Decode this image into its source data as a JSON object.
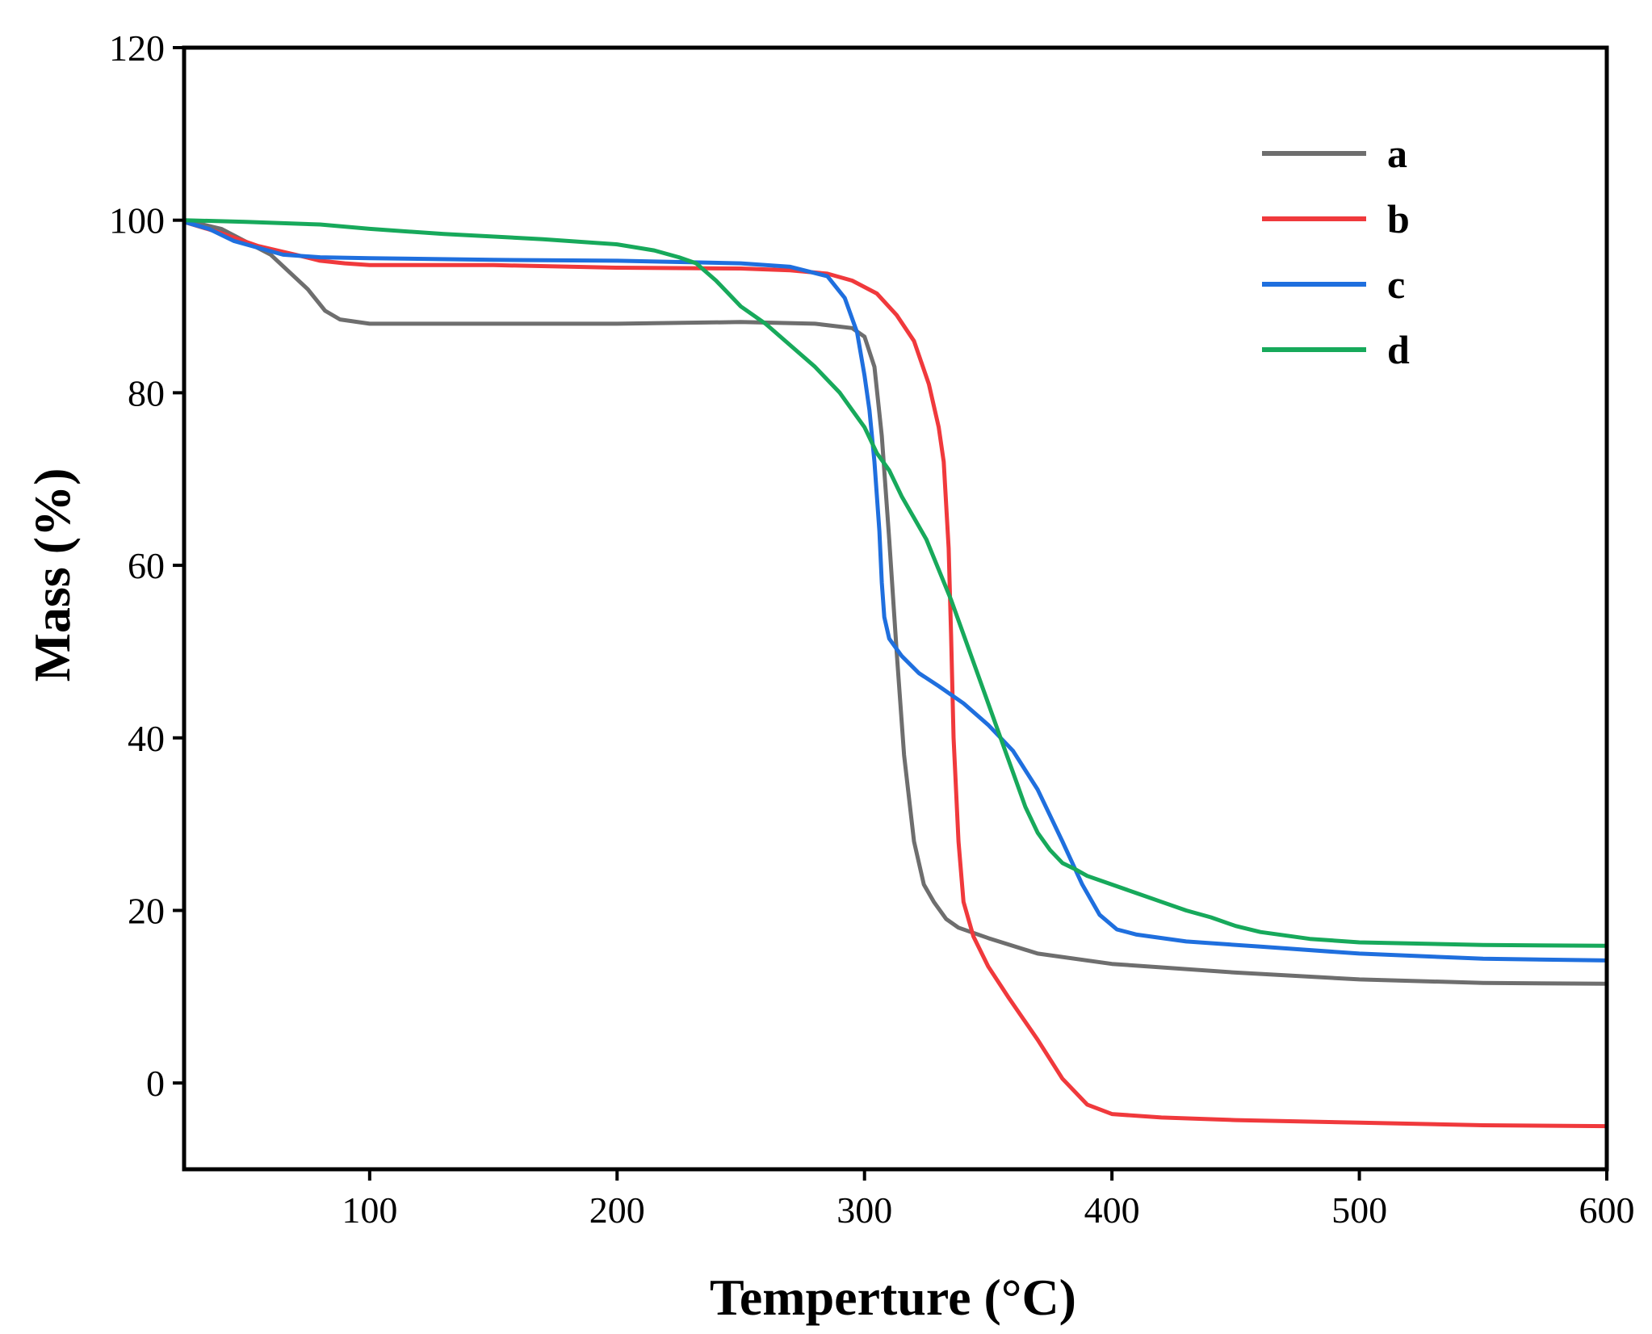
{
  "chart_data": {
    "type": "line",
    "xlabel": "Temperture (°C)",
    "ylabel": "Mass (%)",
    "xlim": [
      25,
      600
    ],
    "ylim": [
      -10,
      120
    ],
    "xticks": [
      100,
      200,
      300,
      400,
      500,
      600
    ],
    "yticks": [
      0,
      20,
      40,
      60,
      80,
      100,
      120
    ],
    "legend_position": "top-right",
    "series": [
      {
        "name": "a",
        "color": "#6e6e6e",
        "points": [
          [
            25,
            100
          ],
          [
            40,
            99
          ],
          [
            60,
            96
          ],
          [
            75,
            92
          ],
          [
            82,
            89.5
          ],
          [
            88,
            88.5
          ],
          [
            100,
            88
          ],
          [
            150,
            88
          ],
          [
            200,
            88
          ],
          [
            250,
            88.2
          ],
          [
            280,
            88
          ],
          [
            295,
            87.5
          ],
          [
            300,
            86.5
          ],
          [
            304,
            83
          ],
          [
            307,
            75
          ],
          [
            310,
            63
          ],
          [
            313,
            50
          ],
          [
            316,
            38
          ],
          [
            320,
            28
          ],
          [
            324,
            23
          ],
          [
            328,
            21
          ],
          [
            333,
            19
          ],
          [
            338,
            18
          ],
          [
            343,
            17.5
          ],
          [
            350,
            16.8
          ],
          [
            370,
            15
          ],
          [
            400,
            13.8
          ],
          [
            450,
            12.8
          ],
          [
            500,
            12
          ],
          [
            550,
            11.6
          ],
          [
            600,
            11.5
          ]
        ]
      },
      {
        "name": "b",
        "color": "#f0393c",
        "points": [
          [
            25,
            99.8
          ],
          [
            40,
            98.5
          ],
          [
            55,
            97
          ],
          [
            70,
            96
          ],
          [
            80,
            95.3
          ],
          [
            90,
            95
          ],
          [
            100,
            94.8
          ],
          [
            150,
            94.8
          ],
          [
            200,
            94.5
          ],
          [
            250,
            94.4
          ],
          [
            270,
            94.2
          ],
          [
            285,
            93.8
          ],
          [
            295,
            93
          ],
          [
            305,
            91.5
          ],
          [
            313,
            89
          ],
          [
            320,
            86
          ],
          [
            326,
            81
          ],
          [
            330,
            76
          ],
          [
            332,
            72
          ],
          [
            334,
            62
          ],
          [
            335,
            52
          ],
          [
            336,
            40
          ],
          [
            338,
            28
          ],
          [
            340,
            21
          ],
          [
            344,
            17
          ],
          [
            350,
            13.5
          ],
          [
            358,
            10
          ],
          [
            370,
            5
          ],
          [
            380,
            0.5
          ],
          [
            390,
            -2.5
          ],
          [
            400,
            -3.6
          ],
          [
            420,
            -4
          ],
          [
            450,
            -4.3
          ],
          [
            500,
            -4.6
          ],
          [
            550,
            -4.9
          ],
          [
            600,
            -5
          ]
        ]
      },
      {
        "name": "c",
        "color": "#1f6fde",
        "points": [
          [
            25,
            99.8
          ],
          [
            35,
            99
          ],
          [
            45,
            97.6
          ],
          [
            55,
            96.8
          ],
          [
            65,
            96
          ],
          [
            80,
            95.7
          ],
          [
            100,
            95.6
          ],
          [
            150,
            95.4
          ],
          [
            200,
            95.3
          ],
          [
            250,
            95
          ],
          [
            270,
            94.6
          ],
          [
            285,
            93.5
          ],
          [
            292,
            91
          ],
          [
            297,
            87
          ],
          [
            300,
            82
          ],
          [
            302,
            78
          ],
          [
            304,
            72
          ],
          [
            306,
            64
          ],
          [
            307,
            58
          ],
          [
            308,
            54
          ],
          [
            310,
            51.5
          ],
          [
            315,
            49.5
          ],
          [
            322,
            47.5
          ],
          [
            330,
            46
          ],
          [
            340,
            44
          ],
          [
            350,
            41.5
          ],
          [
            360,
            38.5
          ],
          [
            370,
            34
          ],
          [
            380,
            28
          ],
          [
            388,
            23
          ],
          [
            395,
            19.5
          ],
          [
            402,
            17.8
          ],
          [
            410,
            17.2
          ],
          [
            430,
            16.4
          ],
          [
            460,
            15.8
          ],
          [
            500,
            15
          ],
          [
            550,
            14.4
          ],
          [
            600,
            14.2
          ]
        ]
      },
      {
        "name": "d",
        "color": "#17a95b",
        "points": [
          [
            25,
            100
          ],
          [
            50,
            99.8
          ],
          [
            80,
            99.5
          ],
          [
            100,
            99
          ],
          [
            130,
            98.4
          ],
          [
            170,
            97.8
          ],
          [
            200,
            97.2
          ],
          [
            215,
            96.5
          ],
          [
            225,
            95.7
          ],
          [
            232,
            95
          ],
          [
            240,
            93
          ],
          [
            250,
            90
          ],
          [
            260,
            88
          ],
          [
            270,
            85.5
          ],
          [
            280,
            83
          ],
          [
            290,
            80
          ],
          [
            295,
            78
          ],
          [
            300,
            76
          ],
          [
            305,
            73
          ],
          [
            310,
            71
          ],
          [
            315,
            68
          ],
          [
            320,
            65.5
          ],
          [
            325,
            63
          ],
          [
            330,
            59.5
          ],
          [
            335,
            56
          ],
          [
            340,
            52
          ],
          [
            345,
            48
          ],
          [
            350,
            44
          ],
          [
            355,
            40
          ],
          [
            360,
            36
          ],
          [
            365,
            32
          ],
          [
            370,
            29
          ],
          [
            375,
            27
          ],
          [
            380,
            25.5
          ],
          [
            385,
            24.8
          ],
          [
            390,
            24
          ],
          [
            400,
            23
          ],
          [
            410,
            22
          ],
          [
            420,
            21
          ],
          [
            430,
            20
          ],
          [
            440,
            19.2
          ],
          [
            450,
            18.2
          ],
          [
            460,
            17.5
          ],
          [
            480,
            16.7
          ],
          [
            500,
            16.3
          ],
          [
            550,
            16
          ],
          [
            600,
            15.9
          ]
        ]
      }
    ]
  }
}
